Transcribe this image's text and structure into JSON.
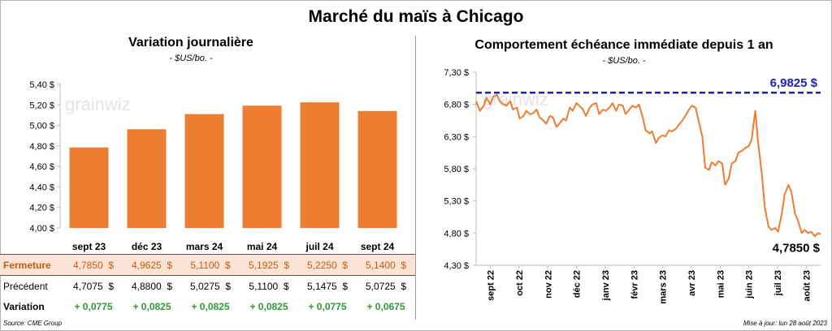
{
  "title": "Marché du maïs à Chicago",
  "left_panel": {
    "title": "Variation journalière",
    "unit": "- $US/bo. -"
  },
  "right_panel": {
    "title": "Comportement échéance immédiate depuis 1 an",
    "unit": "- $US/bo. -"
  },
  "watermark": "grainwiz",
  "table": {
    "row_labels": {
      "close": "Fermeture",
      "previous": "Précédent",
      "variation": "Variation"
    },
    "closes": [
      "4,7850",
      "4,9625",
      "5,1100",
      "5,1925",
      "5,2250",
      "5,1400"
    ],
    "previous": [
      "4,7075",
      "4,8800",
      "5,0275",
      "5,1100",
      "5,1475",
      "5,0725"
    ],
    "variations": [
      "+ 0,0775",
      "+ 0,0825",
      "+ 0,0825",
      "+ 0,0825",
      "+ 0,0775",
      "+ 0,0675"
    ],
    "currency": "$"
  },
  "footer": {
    "source": "Source: CME Group",
    "updated": "Mise à jour: lun 28 août 2023"
  },
  "colors": {
    "bar": "#ed7d31",
    "line": "#ed7d31",
    "reference": "#1f1fb0",
    "variation_text": "#2e9a35",
    "close_text": "#c55a11",
    "close_bg": "#fbe4d5"
  },
  "chart_data": [
    {
      "type": "bar",
      "categories": [
        "sept 23",
        "déc 23",
        "mars 24",
        "mai 24",
        "juil 24",
        "sept 24"
      ],
      "values": [
        4.785,
        4.9625,
        5.11,
        5.1925,
        5.225,
        5.14
      ],
      "ylim": [
        4.0,
        5.4
      ],
      "yticks": [
        4.0,
        4.2,
        4.4,
        4.6,
        4.8,
        5.0,
        5.2,
        5.4
      ],
      "ytick_labels": [
        "4,00 $",
        "4,20 $",
        "4,40 $",
        "4,60 $",
        "4,80 $",
        "5,00 $",
        "5,20 $",
        "5,40 $"
      ],
      "grid": false,
      "legend": "none"
    },
    {
      "type": "line",
      "ylim": [
        4.3,
        7.3
      ],
      "yticks": [
        4.3,
        4.8,
        5.3,
        5.8,
        6.3,
        6.8,
        7.3
      ],
      "ytick_labels": [
        "4,30 $",
        "4,80 $",
        "5,30 $",
        "5,80 $",
        "6,30 $",
        "6,80 $",
        "7,30 $"
      ],
      "x_tick_labels": [
        "sept 22",
        "oct 22",
        "nov 22",
        "déc 22",
        "janv 23",
        "févr 23",
        "mars 23",
        "avr 23",
        "mai 23",
        "juin 23",
        "juil 23",
        "août 23"
      ],
      "reference_line": {
        "value": 6.9825,
        "label": "6,9825 $",
        "style": "dashed"
      },
      "last_value_label": "4,7850 $",
      "series": [
        {
          "x": [
            "2022-08-29",
            "2022-09-02",
            "2022-09-06",
            "2022-09-09",
            "2022-09-13",
            "2022-09-16",
            "2022-09-20",
            "2022-09-23",
            "2022-09-27",
            "2022-09-30",
            "2022-10-04",
            "2022-10-07",
            "2022-10-11",
            "2022-10-14",
            "2022-10-18",
            "2022-10-21",
            "2022-10-25",
            "2022-10-28",
            "2022-11-01",
            "2022-11-04",
            "2022-11-08",
            "2022-11-11",
            "2022-11-15",
            "2022-11-18",
            "2022-11-22",
            "2022-11-25",
            "2022-11-29",
            "2022-12-02",
            "2022-12-06",
            "2022-12-09",
            "2022-12-13",
            "2022-12-16",
            "2022-12-20",
            "2022-12-23",
            "2022-12-27",
            "2022-12-30",
            "2023-01-03",
            "2023-01-06",
            "2023-01-10",
            "2023-01-13",
            "2023-01-17",
            "2023-01-20",
            "2023-01-24",
            "2023-01-27",
            "2023-01-31",
            "2023-02-03",
            "2023-02-07",
            "2023-02-10",
            "2023-02-14",
            "2023-02-17",
            "2023-02-21",
            "2023-02-24",
            "2023-02-28",
            "2023-03-03",
            "2023-03-07",
            "2023-03-10",
            "2023-03-14",
            "2023-03-17",
            "2023-03-21",
            "2023-03-24",
            "2023-03-28",
            "2023-03-31",
            "2023-04-04",
            "2023-04-07",
            "2023-04-11",
            "2023-04-14",
            "2023-04-18",
            "2023-04-21",
            "2023-04-25",
            "2023-04-28",
            "2023-05-02",
            "2023-05-05",
            "2023-05-09",
            "2023-05-12",
            "2023-05-16",
            "2023-05-19",
            "2023-05-23",
            "2023-05-26",
            "2023-05-30",
            "2023-06-02",
            "2023-06-06",
            "2023-06-09",
            "2023-06-13",
            "2023-06-16",
            "2023-06-20",
            "2023-06-23",
            "2023-06-27",
            "2023-06-30",
            "2023-07-04",
            "2023-07-07",
            "2023-07-11",
            "2023-07-14",
            "2023-07-18",
            "2023-07-21",
            "2023-07-25",
            "2023-07-28",
            "2023-08-01",
            "2023-08-04",
            "2023-08-08",
            "2023-08-11",
            "2023-08-15",
            "2023-08-18",
            "2023-08-22",
            "2023-08-25",
            "2023-08-28"
          ],
          "y": [
            6.85,
            6.7,
            6.78,
            6.9,
            6.8,
            6.92,
            6.95,
            6.85,
            6.8,
            6.78,
            6.85,
            6.72,
            6.75,
            6.58,
            6.62,
            6.7,
            6.65,
            6.66,
            6.72,
            6.6,
            6.55,
            6.5,
            6.62,
            6.6,
            6.45,
            6.5,
            6.58,
            6.55,
            6.75,
            6.7,
            6.82,
            6.78,
            6.72,
            6.62,
            6.75,
            6.8,
            6.82,
            6.65,
            6.72,
            6.7,
            6.75,
            6.82,
            6.7,
            6.8,
            6.78,
            6.65,
            6.72,
            6.78,
            6.75,
            6.8,
            6.6,
            6.4,
            6.35,
            6.38,
            6.2,
            6.28,
            6.32,
            6.3,
            6.4,
            6.38,
            6.42,
            6.48,
            6.55,
            6.62,
            6.72,
            6.78,
            6.75,
            6.55,
            6.3,
            5.82,
            5.78,
            5.9,
            5.85,
            5.92,
            5.88,
            5.55,
            5.65,
            5.88,
            5.92,
            6.05,
            6.08,
            6.12,
            6.15,
            6.25,
            6.7,
            6.2,
            5.7,
            5.2,
            4.9,
            4.85,
            4.88,
            4.82,
            5.1,
            5.4,
            5.55,
            5.45,
            5.1,
            5.0,
            4.8,
            4.85,
            4.8,
            4.82,
            4.75,
            4.8,
            4.785
          ]
        }
      ],
      "grid": false,
      "legend": "none"
    }
  ]
}
